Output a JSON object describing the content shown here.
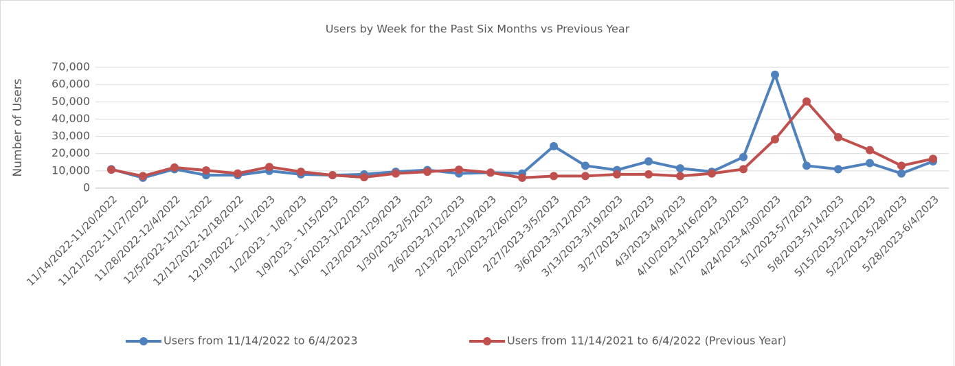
{
  "chart_data": {
    "type": "line",
    "title": "Users by Week for the Past Six Months vs Previous Year",
    "y_label": "Number of Users",
    "categories": [
      "11/14/2022-11/20/2022",
      "11/21/2022-11/27/2022",
      "11/28/2022-12/4/2022",
      "12/5/2022-12/11/-2022",
      "12/12/2022-12/18/2022",
      "12/19/2022 – 1/1/2023",
      "1/2/2023 – 1/8/2023",
      "1/9/2023 – 1/15/2023",
      "1/16/2023-1/22/2023",
      "1/23/2023-1/29/2023",
      "1/30/2023-2/5/2023",
      "2/6/2023-2/12/2023",
      "2/13/2023-2/19/2023",
      "2/20/2023-2/26/2023",
      "2/27/2023-3/5/2023",
      "3/6/2023-3/12/2023",
      "3/13/2023-3/19/2023",
      "3/27/2023-4/2/2023",
      "4/3/2023-4/9/2023",
      "4/10/2023-4/16/2023",
      "4/17/2023-4/23/2023",
      "4/24/2023-4/30/2023",
      "5/1/2023-5/7/2023",
      "5/8/2023-5/14/2023",
      "5/15/2023-5/21/2023",
      "5/22/2023-5/28/2023",
      "5/28/2023-6/4/2023"
    ],
    "series": [
      {
        "name": "Users from 11/14/2022 to 6/4/2023",
        "color": "#4f81bd",
        "values": [
          11000,
          6000,
          11000,
          7500,
          7500,
          10000,
          8000,
          7500,
          8000,
          9500,
          10500,
          8500,
          9000,
          8500,
          24300,
          13000,
          10500,
          15500,
          11500,
          9500,
          18000,
          65700,
          13000,
          11000,
          14500,
          8500,
          15500
        ]
      },
      {
        "name": "Users from 11/14/2021 to 6/4/2022 (Previous Year)",
        "color": "#c0504d",
        "values": [
          10700,
          7000,
          12000,
          10300,
          8500,
          12300,
          9500,
          7500,
          6300,
          8500,
          9500,
          10700,
          9000,
          6000,
          7000,
          7000,
          8000,
          8000,
          7000,
          8500,
          11000,
          28300,
          50200,
          29500,
          22000,
          13000,
          17000
        ]
      }
    ],
    "ylim": [
      0,
      70000
    ],
    "yticks": [
      0,
      {
        "value": 10000,
        "label": "10,000"
      },
      {
        "value": 20000,
        "label": "20,000"
      },
      {
        "value": 30000,
        "label": "30,000"
      },
      {
        "value": 40000,
        "label": "40,000"
      },
      {
        "value": 50000,
        "label": "50,000"
      },
      {
        "value": 60000,
        "label": "60,000"
      },
      {
        "value": 70000,
        "label": "70,000"
      }
    ],
    "grid": true,
    "legend": "bottom"
  }
}
